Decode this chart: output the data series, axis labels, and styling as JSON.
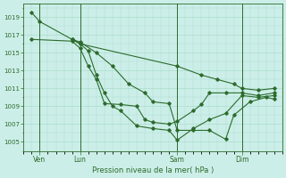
{
  "background_color": "#cceee8",
  "grid_color": "#aaddcc",
  "line_color": "#2d6b2d",
  "xlabel": "Pression niveau de la mer( hPa )",
  "ylim": [
    1004.0,
    1020.5
  ],
  "yticks": [
    1005,
    1007,
    1009,
    1011,
    1013,
    1015,
    1017,
    1019
  ],
  "xlim": [
    0,
    16
  ],
  "xtick_labels": [
    "Ven",
    "Lun",
    "Sam",
    "Dim"
  ],
  "xtick_positions": [
    1,
    3.5,
    9.5,
    13.5
  ],
  "vlines": [
    1,
    3.5,
    9.5,
    13.5
  ],
  "lines": [
    {
      "x": [
        0.5,
        1.0,
        3.5,
        9.5,
        11.0,
        12.0,
        13.0,
        13.5,
        14.5,
        15.5
      ],
      "y": [
        1019.5,
        1018.5,
        1016.0,
        1013.5,
        1012.5,
        1012.0,
        1011.5,
        1011.0,
        1010.8,
        1011.0
      ]
    },
    {
      "x": [
        3.0,
        3.5,
        4.5,
        5.5,
        6.5,
        7.5,
        8.0,
        9.0,
        9.5,
        10.5,
        11.5,
        12.5,
        13.0,
        14.0,
        15.0,
        15.5
      ],
      "y": [
        1016.5,
        1016.2,
        1015.0,
        1013.5,
        1011.5,
        1010.5,
        1009.5,
        1009.3,
        1006.3,
        1006.3,
        1006.3,
        1005.3,
        1008.0,
        1009.5,
        1010.0,
        1009.8
      ]
    },
    {
      "x": [
        3.0,
        3.5,
        4.0,
        4.5,
        5.0,
        5.5,
        6.0,
        7.0,
        8.0,
        9.0,
        9.5,
        10.5,
        11.5,
        12.5,
        13.5,
        14.5,
        15.5
      ],
      "y": [
        1016.5,
        1016.0,
        1015.2,
        1012.5,
        1010.5,
        1009.0,
        1008.5,
        1006.8,
        1006.5,
        1006.3,
        1005.2,
        1006.5,
        1007.5,
        1008.2,
        1010.2,
        1010.0,
        1010.2
      ]
    },
    {
      "x": [
        0.5,
        3.0,
        3.5,
        4.0,
        4.5,
        5.0,
        6.0,
        7.0,
        7.5,
        8.0,
        9.0,
        9.5,
        10.5,
        11.0,
        11.5,
        12.5,
        13.5,
        14.5,
        15.5
      ],
      "y": [
        1016.5,
        1016.3,
        1015.5,
        1013.5,
        1012.0,
        1009.3,
        1009.2,
        1009.0,
        1007.5,
        1007.2,
        1007.0,
        1007.3,
        1008.5,
        1009.2,
        1010.5,
        1010.5,
        1010.5,
        1010.2,
        1010.5
      ]
    }
  ]
}
